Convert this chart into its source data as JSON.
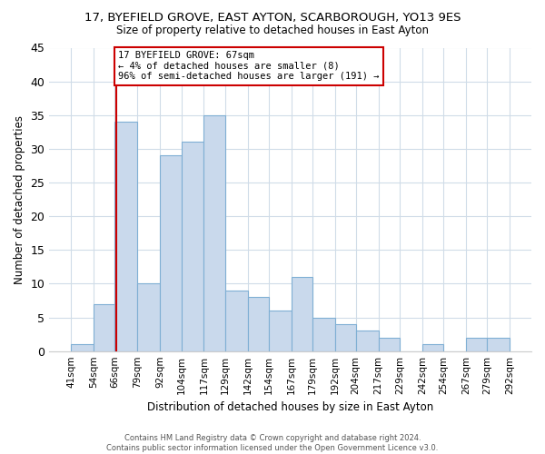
{
  "title1": "17, BYEFIELD GROVE, EAST AYTON, SCARBOROUGH, YO13 9ES",
  "title2": "Size of property relative to detached houses in East Ayton",
  "xlabel": "Distribution of detached houses by size in East Ayton",
  "ylabel": "Number of detached properties",
  "bins": [
    41,
    54,
    66,
    79,
    92,
    104,
    117,
    129,
    142,
    154,
    167,
    179,
    192,
    204,
    217,
    229,
    242,
    254,
    267,
    279,
    292
  ],
  "counts": [
    1,
    7,
    34,
    10,
    29,
    31,
    35,
    9,
    8,
    6,
    11,
    5,
    4,
    3,
    2,
    0,
    1,
    0,
    2,
    2
  ],
  "bar_color": "#c9d9ec",
  "bar_edge_color": "#7fafd4",
  "property_size": 67,
  "vline_color": "#cc0000",
  "annotation_text": "17 BYEFIELD GROVE: 67sqm\n← 4% of detached houses are smaller (8)\n96% of semi-detached houses are larger (191) →",
  "annotation_box_color": "#ffffff",
  "annotation_box_edge_color": "#cc0000",
  "ylim": [
    0,
    45
  ],
  "yticks": [
    0,
    5,
    10,
    15,
    20,
    25,
    30,
    35,
    40,
    45
  ],
  "footnote": "Contains HM Land Registry data © Crown copyright and database right 2024.\nContains public sector information licensed under the Open Government Licence v3.0.",
  "bg_color": "#ffffff",
  "grid_color": "#d0dce8"
}
